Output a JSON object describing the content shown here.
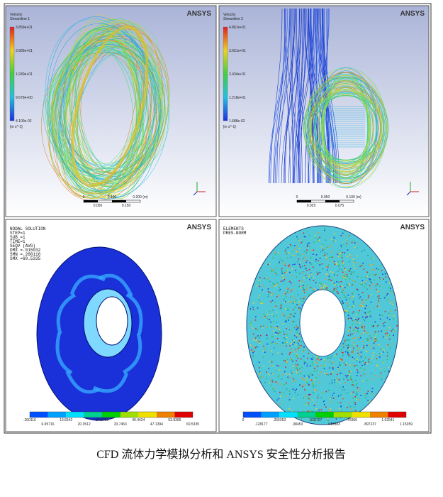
{
  "panels": [
    {
      "logo": "ANSYS",
      "title_lines": [
        "Velocity",
        "Streamline 1"
      ],
      "legend_values": [
        "3.859e+01",
        "2.895e+01",
        "1.930e+01",
        "9.679e+00",
        "4.100e-02"
      ],
      "unit": "[m s^-1]",
      "scale_top": [
        "0",
        "0.100",
        "0.200 (m)"
      ],
      "scale_bottom": [
        "0.050",
        "0.150"
      ]
    },
    {
      "logo": "ANSYS",
      "title_lines": [
        "Velocity",
        "Streamline 2"
      ],
      "legend_values": [
        "4.867e+01",
        "3.651e+01",
        "2.434e+01",
        "1.218e+01",
        "1.688e-02"
      ],
      "unit": "[m s^-1]",
      "scale_top": [
        "0",
        "0.050",
        "0.100 (m)"
      ],
      "scale_bottom": [
        "0.025",
        "0.075"
      ]
    },
    {
      "logo": "ANSYS",
      "header_lines": [
        "NODAL SOLUTION",
        "STEP=1",
        "SUB =1",
        "TIME=1",
        "SEQV     (AVG)",
        "DMX =.015032",
        "SMN =.260116",
        "SMX =60.5335"
      ],
      "legend_top": [
        ".260116",
        "13.6542",
        "27.0483",
        "40.4424",
        "53.8365"
      ],
      "legend_bottom": [
        "6.95716",
        "20.3512",
        "33.7453",
        "47.1394",
        "60.5335"
      ]
    },
    {
      "logo": "ANSYS",
      "header_lines": [
        "ELEMENTS",
        "PRES-NORM"
      ],
      "legend_top": [
        "0",
        ".256353",
        ".512707",
        ".76906",
        "1.02541"
      ],
      "legend_bottom": [
        ".128177",
        ".38453",
        ".640883",
        ".897237",
        "1.15359"
      ]
    }
  ],
  "caption": "CFD 流体力学模拟分析和 ANSYS 安全性分析报告"
}
